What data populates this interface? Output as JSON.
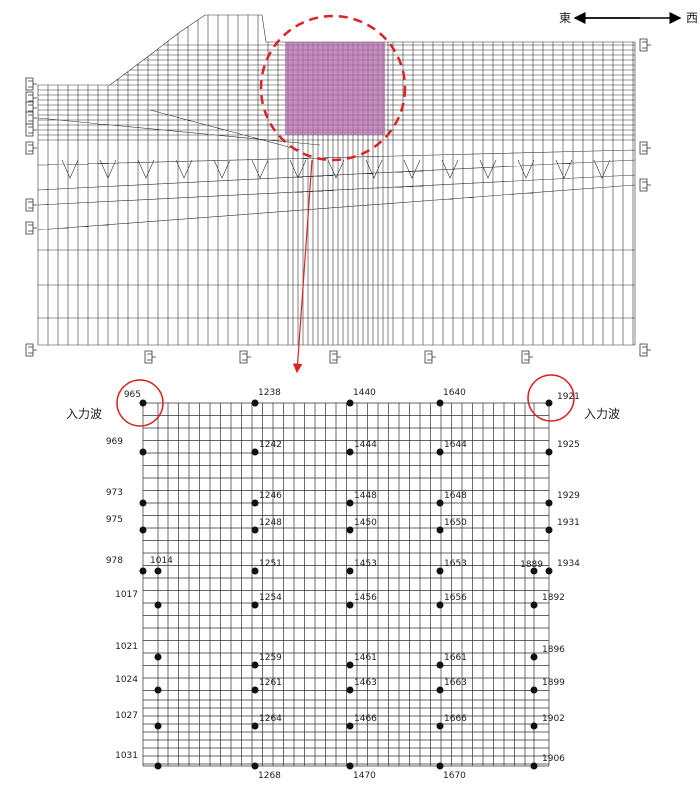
{
  "direction": {
    "east": "東",
    "west": "西"
  },
  "input_wave": [
    "入力波",
    "入力波"
  ],
  "nodes": [
    "965",
    "969",
    "973",
    "975",
    "978",
    "1014",
    "1017",
    "1021",
    "1024",
    "1027",
    "1031",
    "1238",
    "1242",
    "1246",
    "1248",
    "1251",
    "1254",
    "1259",
    "1261",
    "1264",
    "1268",
    "1440",
    "1444",
    "1448",
    "1450",
    "1453",
    "1456",
    "1461",
    "1463",
    "1466",
    "1470",
    "1640",
    "1644",
    "1648",
    "1650",
    "1653",
    "1656",
    "1661",
    "1663",
    "1666",
    "1670",
    "1921",
    "1925",
    "1929",
    "1931",
    "1934",
    "1889",
    "1892",
    "1896",
    "1899",
    "1902",
    "1906"
  ]
}
